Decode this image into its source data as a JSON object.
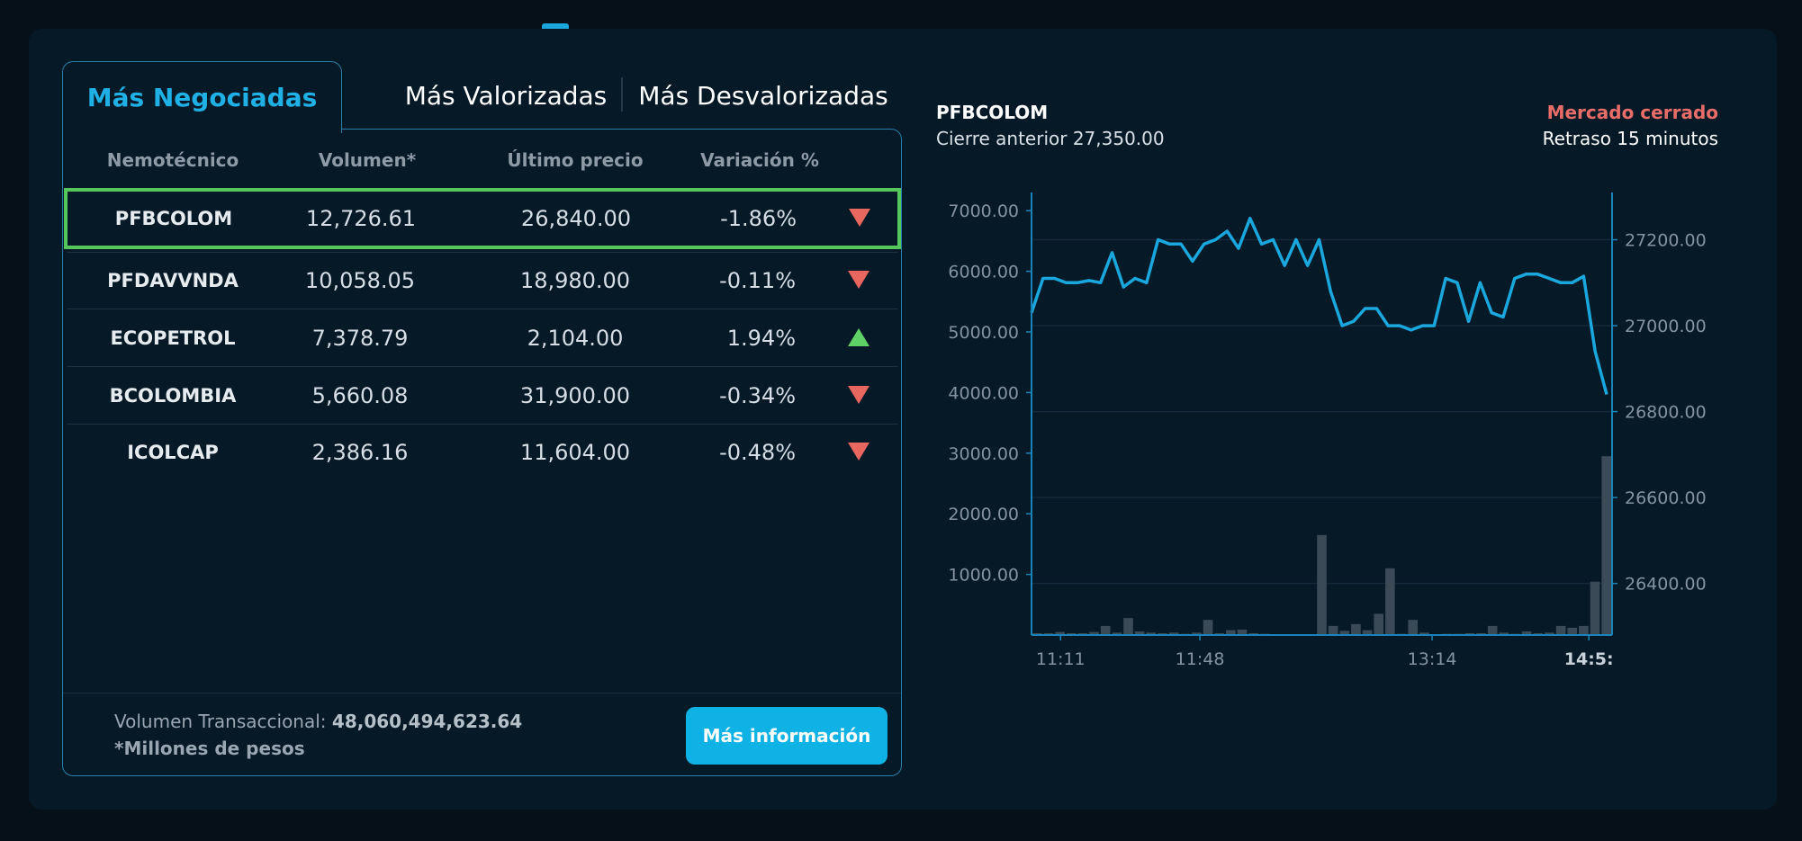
{
  "tabs": [
    {
      "label": "Más Negociadas",
      "active": true
    },
    {
      "label": "Más Valorizadas",
      "active": false
    },
    {
      "label": "Más Desvalorizadas",
      "active": false
    }
  ],
  "table": {
    "headers": [
      "Nemotécnico",
      "Volumen*",
      "Último precio",
      "Variación %"
    ],
    "rows": [
      {
        "symbol": "PFBCOLOM",
        "volume": "12,726.61",
        "price": "26,840.00",
        "variation": "-1.86%",
        "direction": "down",
        "selected": true
      },
      {
        "symbol": "PFDAVVNDA",
        "volume": "10,058.05",
        "price": "18,980.00",
        "variation": "-0.11%",
        "direction": "down",
        "selected": false
      },
      {
        "symbol": "ECOPETROL",
        "volume": "7,378.79",
        "price": "2,104.00",
        "variation": "1.94%",
        "direction": "up",
        "selected": false
      },
      {
        "symbol": "BCOLOMBIA",
        "volume": "5,660.08",
        "price": "31,900.00",
        "variation": "-0.34%",
        "direction": "down",
        "selected": false
      },
      {
        "symbol": "ICOLCAP",
        "volume": "2,386.16",
        "price": "11,604.00",
        "variation": "-0.48%",
        "direction": "down",
        "selected": false
      }
    ]
  },
  "footer": {
    "volume_label": "Volumen Transaccional:",
    "volume_value": "48,060,494,623.64",
    "note": "*Millones de pesos",
    "more_button": "Más información"
  },
  "chart_header": {
    "symbol": "PFBCOLOM",
    "previous_close": "Cierre anterior 27,350.00",
    "market_status": "Mercado cerrado",
    "delay": "Retraso 15 minutos"
  },
  "colors": {
    "accent": "#1fb0e6",
    "down": "#e8675f",
    "up": "#5ed066",
    "selected_border": "#53c65c",
    "price_line": "#1aa7dd",
    "volume_bar": "#3a4a57"
  },
  "chart_data": {
    "type": "line",
    "title": "",
    "xlabel": "",
    "ylabel": "",
    "x_ticks": [
      "11:11",
      "11:48",
      "13:14",
      "14:5:"
    ],
    "y_left_ticks": [
      "1000.00",
      "2000.00",
      "3000.00",
      "4000.00",
      "5000.00",
      "6000.00",
      "7000.00"
    ],
    "y_right_ticks": [
      "26400.00",
      "26600.00",
      "26800.00",
      "27000.00",
      "27200.00"
    ],
    "y_left_lim": [
      0,
      7300
    ],
    "y_right_lim": [
      26280,
      27310
    ],
    "series": [
      {
        "axis": "right",
        "type": "line",
        "values": [
          27030,
          27110,
          27110,
          27100,
          27100,
          27105,
          27100,
          27170,
          27090,
          27110,
          27100,
          27200,
          27190,
          27190,
          27150,
          27190,
          27200,
          27220,
          27180,
          27250,
          27190,
          27200,
          27140,
          27200,
          27140,
          27200,
          27080,
          27000,
          27010,
          27040,
          27040,
          27000,
          27000,
          26990,
          27000,
          27000,
          27110,
          27100,
          27010,
          27100,
          27030,
          27020,
          27110,
          27120,
          27120,
          27110,
          27100,
          27100,
          27115,
          26940,
          26840
        ]
      },
      {
        "axis": "left",
        "type": "bar",
        "values": [
          30,
          30,
          50,
          30,
          30,
          50,
          150,
          40,
          280,
          60,
          40,
          30,
          40,
          20,
          40,
          250,
          30,
          80,
          90,
          30,
          20,
          10,
          10,
          10,
          10,
          1650,
          150,
          70,
          180,
          80,
          350,
          1100,
          20,
          250,
          40,
          10,
          20,
          20,
          30,
          30,
          150,
          40,
          20,
          60,
          30,
          40,
          150,
          120,
          150,
          880,
          2950
        ]
      }
    ],
    "grid": true
  }
}
